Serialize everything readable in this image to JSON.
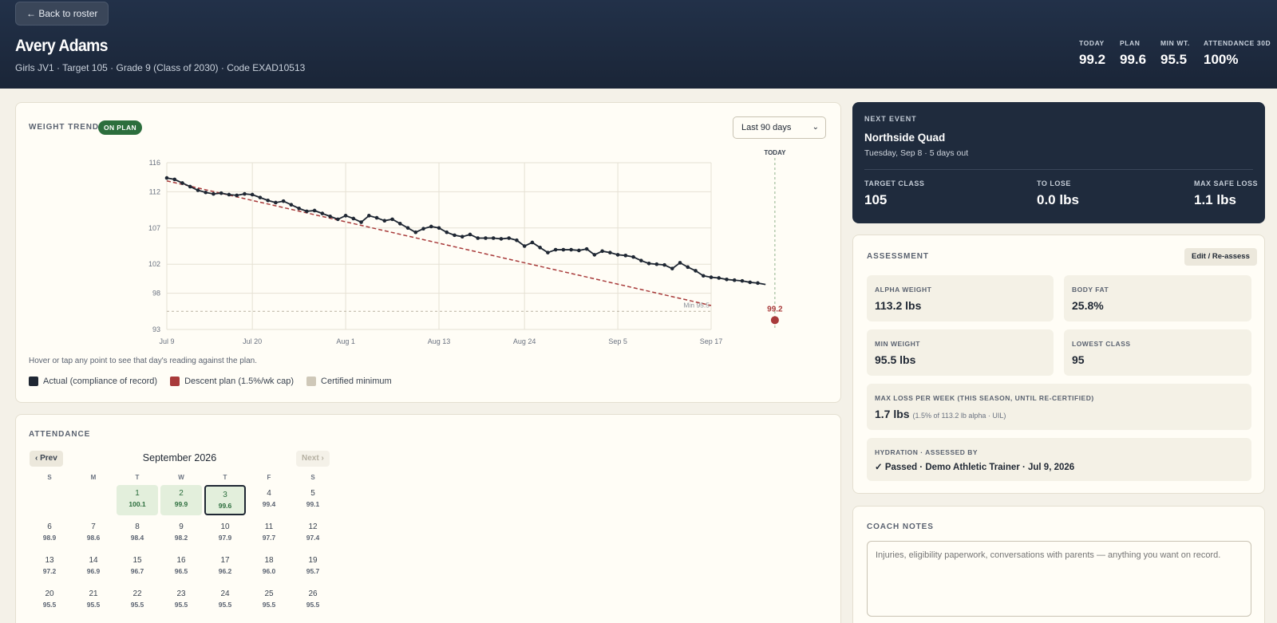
{
  "header": {
    "back_label": "← Back to roster",
    "name": "Avery Adams",
    "subtitle": "Girls JV1 · Target 105 · Grade 9 (Class of 2030) · Code EXAD10513",
    "stats": [
      {
        "label": "TODAY",
        "value": "99.2"
      },
      {
        "label": "PLAN",
        "value": "99.6"
      },
      {
        "label": "MIN WT.",
        "value": "95.5"
      },
      {
        "label": "ATTENDANCE 30D",
        "value": "100%"
      }
    ]
  },
  "trend": {
    "title": "WEIGHT TREND",
    "badge": "ON PLAN",
    "range": "Last 90 days",
    "hint": "Hover or tap any point to see that day's reading against the plan.",
    "legend": [
      {
        "label": "Actual (compliance of record)",
        "color": "#1f2733"
      },
      {
        "label": "Descent plan (1.5%/wk cap)",
        "color": "#a83a3a"
      },
      {
        "label": "Certified minimum",
        "color": "#cfc8b8"
      }
    ]
  },
  "chart_data": {
    "type": "line",
    "ylim": [
      93,
      116
    ],
    "yticks": [
      "116",
      "112",
      "107",
      "102",
      "98",
      "93"
    ],
    "xticks": [
      "Jul 9",
      "Jul 20",
      "Aug 1",
      "Aug 13",
      "Aug 24",
      "Sep 5",
      "Sep 17"
    ],
    "today_label": "TODAY",
    "today_value_label": "99.2",
    "min_label": "Min 95.5",
    "min_weight": 95.5,
    "plan": {
      "name": "Descent plan (1.5%/wk cap)",
      "x": [
        "Jul 9",
        "Sep 17"
      ],
      "y": [
        113.5,
        96.3
      ]
    },
    "actual": {
      "name": "Actual (compliance of record)",
      "x_start": "Jul 9",
      "values": [
        113.9,
        113.7,
        113.2,
        112.7,
        112.2,
        111.9,
        111.7,
        111.8,
        111.6,
        111.5,
        111.7,
        111.6,
        111.2,
        110.8,
        110.5,
        110.7,
        110.2,
        109.7,
        109.3,
        109.4,
        109.0,
        108.6,
        108.2,
        108.7,
        108.3,
        107.8,
        108.7,
        108.4,
        108.0,
        108.2,
        107.6,
        107.0,
        106.4,
        106.9,
        107.2,
        107.0,
        106.4,
        106.0,
        105.8,
        106.1,
        105.6,
        105.6,
        105.6,
        105.5,
        105.6,
        105.3,
        104.5,
        105.0,
        104.3,
        103.6,
        104.0,
        104.0,
        104.0,
        103.9,
        104.1,
        103.3,
        103.8,
        103.6,
        103.3,
        103.2,
        103.0,
        102.5,
        102.1,
        102.0,
        101.9,
        101.4,
        102.2,
        101.6,
        101.1,
        100.4,
        100.2,
        100.1,
        99.9,
        99.8,
        99.7,
        99.5,
        99.4,
        99.2
      ]
    }
  },
  "attendance": {
    "title": "ATTENDANCE",
    "prev": "‹ Prev",
    "next": "Next ›",
    "month": "September 2026",
    "dow": [
      "S",
      "M",
      "T",
      "W",
      "T",
      "F",
      "S"
    ],
    "days": [
      {
        "d": "1",
        "v": "100.1",
        "att": true
      },
      {
        "d": "2",
        "v": "99.9",
        "att": true
      },
      {
        "d": "3",
        "v": "99.6",
        "att": true,
        "today": true
      },
      {
        "d": "4",
        "v": "99.4"
      },
      {
        "d": "5",
        "v": "99.1"
      },
      {
        "d": "6",
        "v": "98.9"
      },
      {
        "d": "7",
        "v": "98.6"
      },
      {
        "d": "8",
        "v": "98.4"
      },
      {
        "d": "9",
        "v": "98.2"
      },
      {
        "d": "10",
        "v": "97.9"
      },
      {
        "d": "11",
        "v": "97.7"
      },
      {
        "d": "12",
        "v": "97.4"
      },
      {
        "d": "13",
        "v": "97.2"
      },
      {
        "d": "14",
        "v": "96.9"
      },
      {
        "d": "15",
        "v": "96.7"
      },
      {
        "d": "16",
        "v": "96.5"
      },
      {
        "d": "17",
        "v": "96.2"
      },
      {
        "d": "18",
        "v": "96.0"
      },
      {
        "d": "19",
        "v": "95.7"
      },
      {
        "d": "20",
        "v": "95.5"
      },
      {
        "d": "21",
        "v": "95.5"
      },
      {
        "d": "22",
        "v": "95.5"
      },
      {
        "d": "23",
        "v": "95.5"
      },
      {
        "d": "24",
        "v": "95.5"
      },
      {
        "d": "25",
        "v": "95.5"
      },
      {
        "d": "26",
        "v": "95.5"
      }
    ]
  },
  "event": {
    "title": "NEXT EVENT",
    "name": "Northside Quad",
    "date": "Tuesday, Sep 8 · 5 days out",
    "stats": [
      {
        "label": "TARGET CLASS",
        "value": "105"
      },
      {
        "label": "TO LOSE",
        "value": "0.0 lbs"
      },
      {
        "label": "MAX SAFE LOSS",
        "value": "1.1 lbs"
      }
    ]
  },
  "assessment": {
    "title": "ASSESSMENT",
    "edit_label": "Edit / Re-assess",
    "alpha_label": "ALPHA WEIGHT",
    "alpha_value": "113.2 lbs",
    "bodyfat_label": "BODY FAT",
    "bodyfat_value": "25.8%",
    "minweight_label": "MIN WEIGHT",
    "minweight_value": "95.5 lbs",
    "lowest_label": "LOWEST CLASS",
    "lowest_value": "95",
    "maxloss_label": "MAX LOSS PER WEEK (THIS SEASON, UNTIL RE-CERTIFIED)",
    "maxloss_value": "1.7 lbs",
    "maxloss_note": "(1.5% of 113.2 lb alpha · UIL)",
    "hydration_label": "HYDRATION · ASSESSED BY",
    "hydration_value": "✓ Passed · Demo Athletic Trainer · Jul 9, 2026"
  },
  "notes": {
    "title": "COACH NOTES",
    "placeholder": "Injuries, eligibility paperwork, conversations with parents — anything you want on record."
  }
}
